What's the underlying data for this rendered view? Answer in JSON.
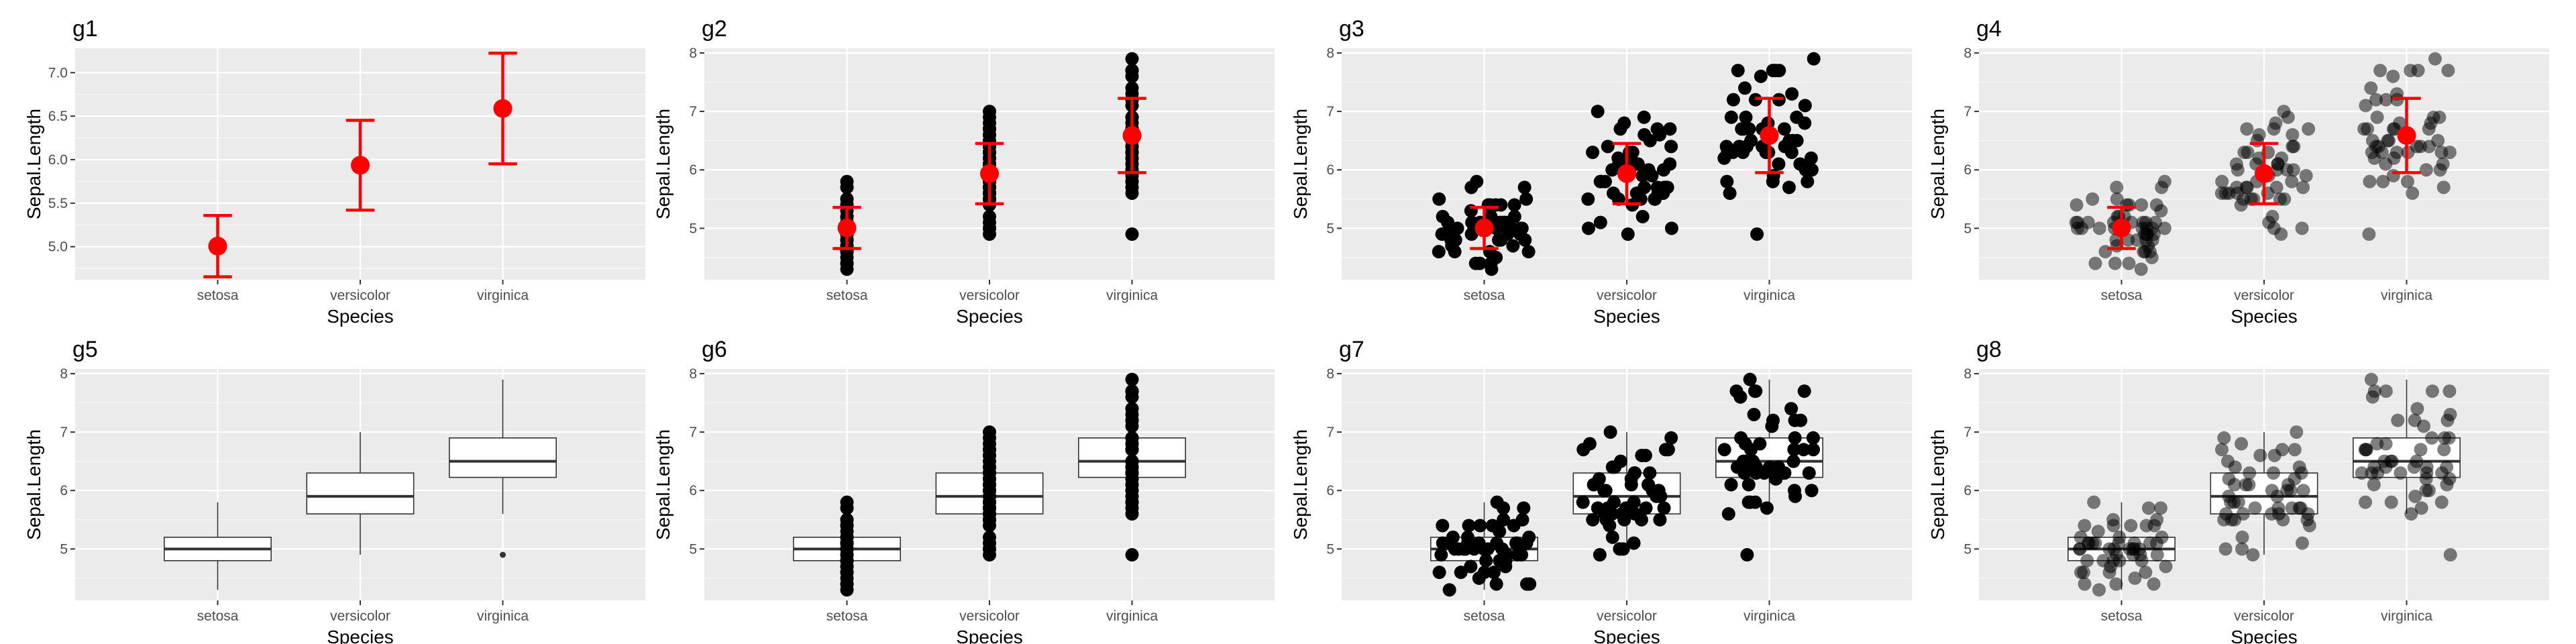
{
  "colors": {
    "panel_bg": "#ebebeb",
    "grid_major": "#ffffff",
    "point": "#000000",
    "summary": "#ff0000",
    "box_fill": "#ffffff",
    "box_line": "#333333"
  },
  "chart_data": [
    {
      "title": "g1",
      "type": "errorbar",
      "layers": [
        "errorbar",
        "mean"
      ],
      "xlabel": "Species",
      "ylabel": "Sepal.Length",
      "categories": [
        "setosa",
        "versicolor",
        "virginica"
      ],
      "ylim": [
        4.62,
        7.28
      ],
      "yticks": [
        "5.0",
        "5.5",
        "6.0",
        "6.5",
        "7.0"
      ],
      "grid": true
    },
    {
      "title": "g2",
      "type": "scatter",
      "layers": [
        "points",
        "errorbar",
        "mean"
      ],
      "xlabel": "Species",
      "ylabel": "Sepal.Length",
      "categories": [
        "setosa",
        "versicolor",
        "virginica"
      ],
      "ylim": [
        4.12,
        8.08
      ],
      "yticks": [
        "5",
        "6",
        "7",
        "8"
      ],
      "grid": true
    },
    {
      "title": "g3",
      "type": "scatter",
      "layers": [
        "points",
        "errorbar",
        "mean"
      ],
      "jitter": true,
      "xlabel": "Species",
      "ylabel": "Sepal.Length",
      "categories": [
        "setosa",
        "versicolor",
        "virginica"
      ],
      "ylim": [
        4.12,
        8.08
      ],
      "yticks": [
        "5",
        "6",
        "7",
        "8"
      ],
      "grid": true
    },
    {
      "title": "g4",
      "type": "scatter",
      "layers": [
        "points",
        "errorbar",
        "mean"
      ],
      "jitter": true,
      "point_alpha": 0.5,
      "xlabel": "Species",
      "ylabel": "Sepal.Length",
      "categories": [
        "setosa",
        "versicolor",
        "virginica"
      ],
      "ylim": [
        4.12,
        8.08
      ],
      "yticks": [
        "5",
        "6",
        "7",
        "8"
      ],
      "grid": true
    },
    {
      "title": "g5",
      "type": "box",
      "layers": [
        "box"
      ],
      "xlabel": "Species",
      "ylabel": "Sepal.Length",
      "categories": [
        "setosa",
        "versicolor",
        "virginica"
      ],
      "ylim": [
        4.12,
        8.08
      ],
      "yticks": [
        "5",
        "6",
        "7",
        "8"
      ],
      "grid": true
    },
    {
      "title": "g6",
      "type": "box",
      "layers": [
        "box",
        "points"
      ],
      "xlabel": "Species",
      "ylabel": "Sepal.Length",
      "categories": [
        "setosa",
        "versicolor",
        "virginica"
      ],
      "ylim": [
        4.12,
        8.08
      ],
      "yticks": [
        "5",
        "6",
        "7",
        "8"
      ],
      "grid": true
    },
    {
      "title": "g7",
      "type": "box",
      "layers": [
        "box",
        "points"
      ],
      "jitter": true,
      "xlabel": "Species",
      "ylabel": "Sepal.Length",
      "categories": [
        "setosa",
        "versicolor",
        "virginica"
      ],
      "ylim": [
        4.12,
        8.08
      ],
      "yticks": [
        "5",
        "6",
        "7",
        "8"
      ],
      "grid": true
    },
    {
      "title": "g8",
      "type": "box",
      "layers": [
        "box",
        "points"
      ],
      "jitter": true,
      "point_alpha": 0.5,
      "xlabel": "Species",
      "ylabel": "Sepal.Length",
      "categories": [
        "setosa",
        "versicolor",
        "virginica"
      ],
      "ylim": [
        4.12,
        8.08
      ],
      "yticks": [
        "5",
        "6",
        "7",
        "8"
      ],
      "grid": true
    }
  ],
  "series": {
    "mean": [
      5.006,
      5.936,
      6.588
    ],
    "sd": [
      0.352,
      0.516,
      0.636
    ],
    "box": [
      {
        "category": "setosa",
        "min": 4.3,
        "q1": 4.8,
        "median": 5.0,
        "q3": 5.2,
        "max": 5.8,
        "outliers": []
      },
      {
        "category": "versicolor",
        "min": 4.9,
        "q1": 5.6,
        "median": 5.9,
        "q3": 6.3,
        "max": 7.0,
        "outliers": []
      },
      {
        "category": "virginica",
        "min": 5.6,
        "q1": 6.225,
        "median": 6.5,
        "q3": 6.9,
        "max": 7.9,
        "outliers": [
          4.9
        ]
      }
    ],
    "points": [
      [
        5.1,
        4.9,
        4.7,
        4.6,
        5.0,
        5.4,
        4.6,
        5.0,
        4.4,
        4.9,
        5.4,
        4.8,
        4.8,
        4.3,
        5.8,
        5.7,
        5.4,
        5.1,
        5.7,
        5.1,
        5.4,
        5.1,
        4.6,
        5.1,
        4.8,
        5.0,
        5.0,
        5.2,
        5.2,
        4.7,
        4.8,
        5.4,
        5.2,
        5.5,
        4.9,
        5.0,
        5.5,
        4.9,
        4.4,
        5.1,
        5.0,
        4.5,
        4.4,
        5.0,
        5.1,
        4.8,
        5.1,
        4.6,
        5.3,
        5.0
      ],
      [
        7.0,
        6.4,
        6.9,
        5.5,
        6.5,
        5.7,
        6.3,
        4.9,
        6.6,
        5.2,
        5.0,
        5.9,
        6.0,
        6.1,
        5.6,
        6.7,
        5.6,
        5.8,
        6.2,
        5.6,
        5.9,
        6.1,
        6.3,
        6.1,
        6.4,
        6.6,
        6.8,
        6.7,
        6.0,
        5.7,
        5.5,
        5.5,
        5.8,
        6.0,
        5.4,
        6.0,
        6.7,
        6.3,
        5.6,
        5.5,
        5.5,
        6.1,
        5.8,
        5.0,
        5.6,
        5.7,
        5.7,
        6.2,
        5.1,
        5.7
      ],
      [
        6.3,
        5.8,
        7.1,
        6.3,
        6.5,
        7.6,
        4.9,
        7.3,
        6.7,
        7.2,
        6.5,
        6.4,
        6.8,
        5.7,
        5.8,
        6.4,
        6.5,
        7.7,
        7.7,
        6.0,
        6.9,
        5.6,
        7.7,
        6.3,
        6.7,
        7.2,
        6.2,
        6.1,
        6.4,
        7.2,
        7.4,
        7.9,
        6.4,
        6.3,
        6.1,
        7.7,
        6.3,
        6.4,
        6.0,
        6.9,
        6.7,
        6.9,
        5.8,
        6.8,
        6.7,
        6.7,
        6.3,
        6.5,
        6.2,
        5.9
      ]
    ]
  }
}
